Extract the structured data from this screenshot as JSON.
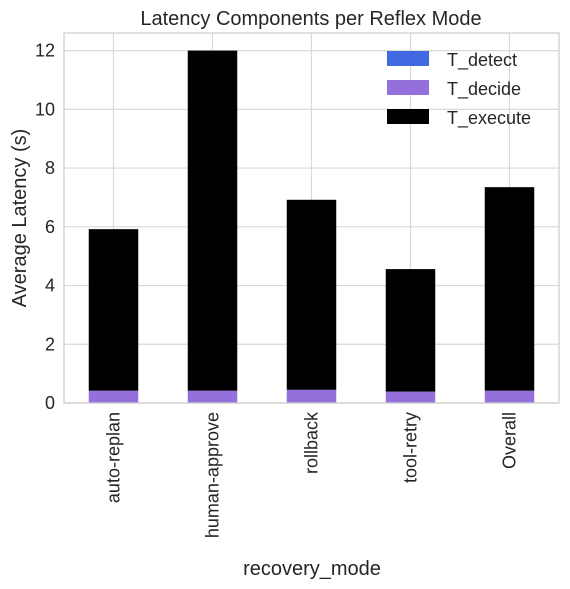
{
  "chart_data": {
    "type": "bar",
    "stacked": true,
    "title": "Latency Components per Reflex Mode",
    "xlabel": "recovery_mode",
    "ylabel": "Average Latency (s)",
    "ylim": [
      0,
      12.6
    ],
    "yticks": [
      0,
      2,
      4,
      6,
      8,
      10,
      12
    ],
    "grid": true,
    "legend_position": "top-right",
    "categories": [
      "auto-replan",
      "human-approve",
      "rollback",
      "tool-retry",
      "Overall"
    ],
    "series": [
      {
        "name": "T_detect",
        "color": "#4169e1",
        "values": [
          0.02,
          0.02,
          0.02,
          0.02,
          0.02
        ]
      },
      {
        "name": "T_decide",
        "color": "#9370db",
        "values": [
          0.4,
          0.4,
          0.43,
          0.37,
          0.4
        ]
      },
      {
        "name": "T_execute",
        "color": "#000000",
        "values": [
          5.5,
          11.58,
          6.47,
          4.17,
          6.93
        ]
      }
    ]
  }
}
